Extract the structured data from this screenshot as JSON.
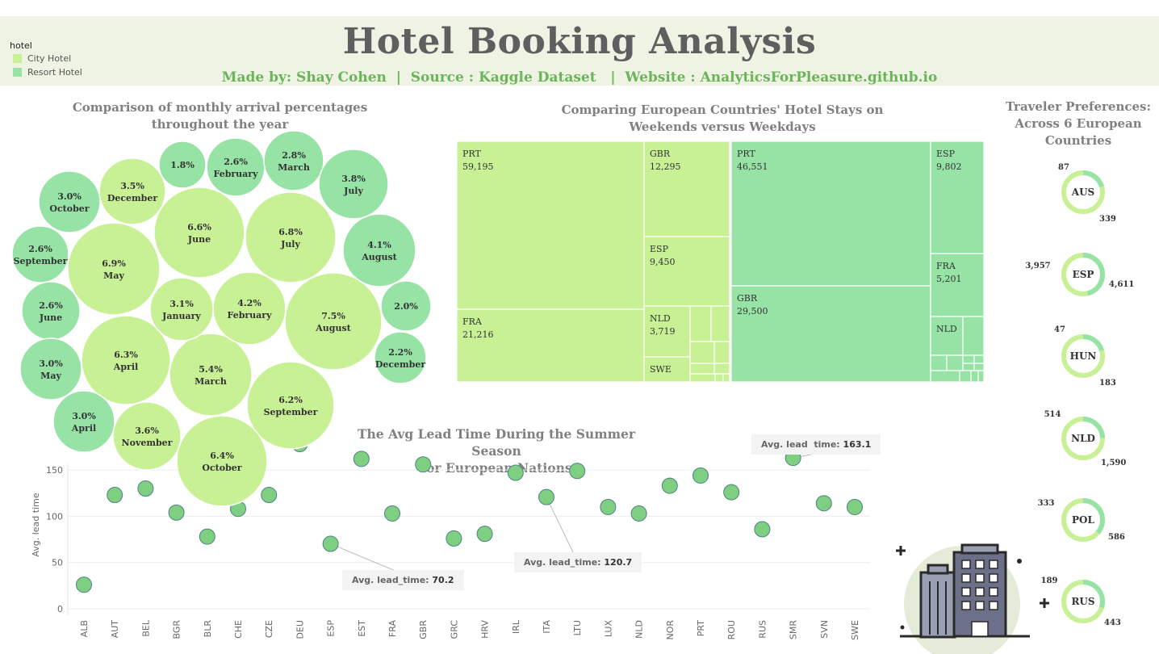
{
  "header": {
    "title": "Hotel Booking Analysis",
    "subtitle": "Made by: Shay Cohen  |  Source : Kaggle Dataset   |  Website : AnalyticsForPleasure.github.io"
  },
  "legend": {
    "title": "hotel",
    "items": [
      {
        "label": "City Hotel",
        "color": "#c8f095"
      },
      {
        "label": "Resort Hotel",
        "color": "#96e3a5"
      }
    ]
  },
  "colors": {
    "city": "#c8f095",
    "resort": "#96e3a5",
    "header_bg": "#eef3e4",
    "accent_text": "#6cb45a"
  },
  "chart_data": [
    {
      "type": "bubble",
      "title": "Comparison of monthly arrival percentages throughout the year",
      "title_lines": [
        "Comparison of monthly arrival percentages",
        "throughout the year"
      ],
      "bubbles": [
        {
          "hotel": "City Hotel",
          "pct": "6.9%",
          "month": "May"
        },
        {
          "hotel": "City Hotel",
          "pct": "6.6%",
          "month": "June"
        },
        {
          "hotel": "City Hotel",
          "pct": "6.8%",
          "month": "July"
        },
        {
          "hotel": "City Hotel",
          "pct": "7.5%",
          "month": "August"
        },
        {
          "hotel": "City Hotel",
          "pct": "6.3%",
          "month": "April"
        },
        {
          "hotel": "City Hotel",
          "pct": "5.4%",
          "month": "March"
        },
        {
          "hotel": "City Hotel",
          "pct": "6.2%",
          "month": "September"
        },
        {
          "hotel": "City Hotel",
          "pct": "6.4%",
          "month": "October"
        },
        {
          "hotel": "City Hotel",
          "pct": "4.2%",
          "month": "February"
        },
        {
          "hotel": "City Hotel",
          "pct": "3.1%",
          "month": "January"
        },
        {
          "hotel": "City Hotel",
          "pct": "3.5%",
          "month": "December"
        },
        {
          "hotel": "City Hotel",
          "pct": "3.6%",
          "month": "November"
        },
        {
          "hotel": "Resort Hotel",
          "pct": "1.8%",
          "month": ""
        },
        {
          "hotel": "Resort Hotel",
          "pct": "2.6%",
          "month": "February"
        },
        {
          "hotel": "Resort Hotel",
          "pct": "2.8%",
          "month": "March"
        },
        {
          "hotel": "Resort Hotel",
          "pct": "3.8%",
          "month": "July"
        },
        {
          "hotel": "Resort Hotel",
          "pct": "3.0%",
          "month": "October"
        },
        {
          "hotel": "Resort Hotel",
          "pct": "2.6%",
          "month": "September"
        },
        {
          "hotel": "Resort Hotel",
          "pct": "2.6%",
          "month": "June"
        },
        {
          "hotel": "Resort Hotel",
          "pct": "3.0%",
          "month": "May"
        },
        {
          "hotel": "Resort Hotel",
          "pct": "3.0%",
          "month": "April"
        },
        {
          "hotel": "Resort Hotel",
          "pct": "4.1%",
          "month": "August"
        },
        {
          "hotel": "Resort Hotel",
          "pct": "2.0%",
          "month": ""
        },
        {
          "hotel": "Resort Hotel",
          "pct": "2.2%",
          "month": "December"
        }
      ]
    },
    {
      "type": "treemap",
      "title": "Comparing European Countries' Hotel Stays on Weekends versus Weekdays",
      "title_lines": [
        "Comparing European Countries' Hotel Stays on",
        "Weekends versus Weekdays"
      ],
      "groups": [
        {
          "hotel": "City Hotel",
          "items": [
            {
              "code": "PRT",
              "value": "59,195"
            },
            {
              "code": "FRA",
              "value": "21,216"
            },
            {
              "code": "GBR",
              "value": "12,295"
            },
            {
              "code": "ESP",
              "value": "9,450"
            },
            {
              "code": "NLD",
              "value": "3,719"
            },
            {
              "code": "SWE",
              "value": ""
            }
          ]
        },
        {
          "hotel": "Resort Hotel",
          "items": [
            {
              "code": "PRT",
              "value": "46,551"
            },
            {
              "code": "GBR",
              "value": "29,500"
            },
            {
              "code": "ESP",
              "value": "9,802"
            },
            {
              "code": "FRA",
              "value": "5,201"
            },
            {
              "code": "NLD",
              "value": ""
            }
          ]
        }
      ]
    },
    {
      "type": "scatter",
      "title": "The Avg Lead Time During the Summer Season for European Nations",
      "title_lines": [
        "The Avg Lead Time During the Summer Season",
        "for European Nations"
      ],
      "ylabel": "Avg. lead time",
      "ylim": [
        0,
        190
      ],
      "yticks": [
        0,
        50,
        100,
        150
      ],
      "categories": [
        "ALB",
        "AUT",
        "BEL",
        "BGR",
        "BLR",
        "CHE",
        "CZE",
        "DEU",
        "ESP",
        "EST",
        "FRA",
        "GBR",
        "GRC",
        "HRV",
        "IRL",
        "ITA",
        "LTU",
        "LUX",
        "NLD",
        "NOR",
        "PRT",
        "ROU",
        "RUS",
        "SMR",
        "SVN",
        "SWE"
      ],
      "values": [
        26,
        123,
        130,
        104,
        78,
        108,
        123,
        178,
        70.2,
        162,
        103,
        156,
        76,
        81,
        147,
        120.7,
        149,
        110,
        103,
        133,
        144,
        126,
        86,
        163.1,
        114,
        110
      ],
      "annotations": [
        {
          "prefix": "Avg. lead_time: ",
          "value": "70.2"
        },
        {
          "prefix": "Avg. lead_time: ",
          "value": "120.7"
        },
        {
          "prefix": "Avg. lead  time: ",
          "value": "163.1"
        }
      ]
    },
    {
      "type": "donut",
      "title": "Traveler Preferences: Across 6 European Countries",
      "title_lines": [
        "Traveler Preferences:",
        "Across 6 European",
        "Countries"
      ],
      "items": [
        {
          "code": "AUS",
          "resort": 87,
          "city": 339,
          "resort_label": "87",
          "city_label": "339"
        },
        {
          "code": "ESP",
          "resort": 3957,
          "city": 4611,
          "resort_label": "3,957",
          "city_label": "4,611"
        },
        {
          "code": "HUN",
          "resort": 47,
          "city": 183,
          "resort_label": "47",
          "city_label": "183"
        },
        {
          "code": "NLD",
          "resort": 514,
          "city": 1590,
          "resort_label": "514",
          "city_label": "1,590"
        },
        {
          "code": "POL",
          "resort": 333,
          "city": 586,
          "resort_label": "333",
          "city_label": "586"
        },
        {
          "code": "RUS",
          "resort": 189,
          "city": 443,
          "resort_label": "189",
          "city_label": "443"
        }
      ]
    }
  ]
}
